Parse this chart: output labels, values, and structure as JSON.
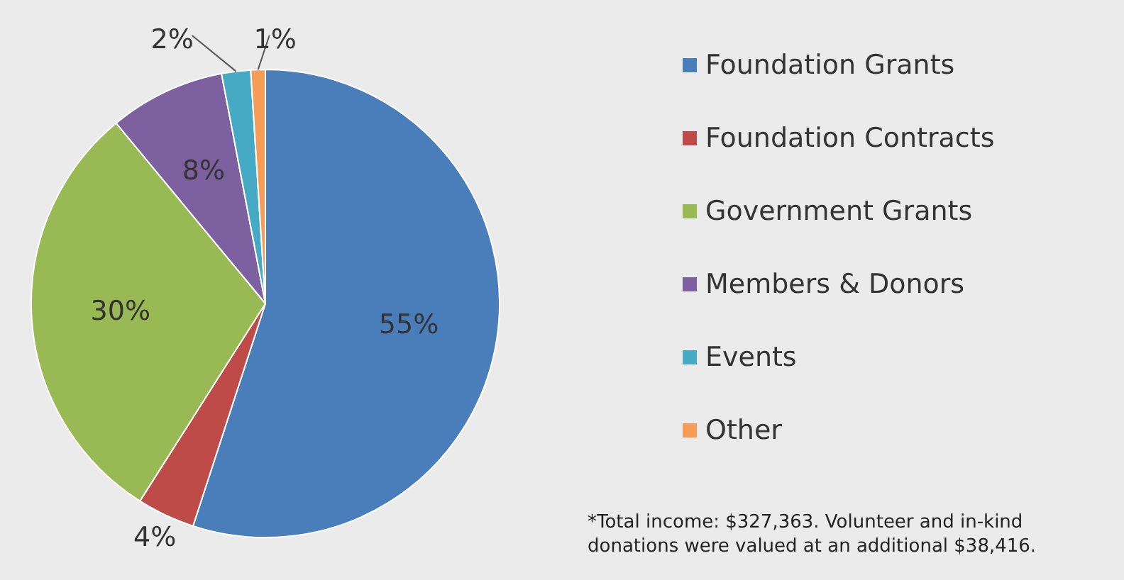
{
  "chart_data": {
    "type": "pie",
    "categories": [
      "Foundation Grants",
      "Foundation Contracts",
      "Government Grants",
      "Members & Donors",
      "Events",
      "Other"
    ],
    "values": [
      55,
      4,
      30,
      8,
      2,
      1
    ],
    "colors": [
      "#4a7ebb",
      "#be4b48",
      "#98b954",
      "#7d60a0",
      "#46aac5",
      "#f59d56"
    ],
    "value_labels": [
      "55%",
      "4%",
      "30%",
      "8%",
      "2%",
      "1%"
    ],
    "legend": "right",
    "annotations": [
      "*Total income: $327,363. Volunteer and in-kind donations were valued at an additional $38,416."
    ]
  }
}
